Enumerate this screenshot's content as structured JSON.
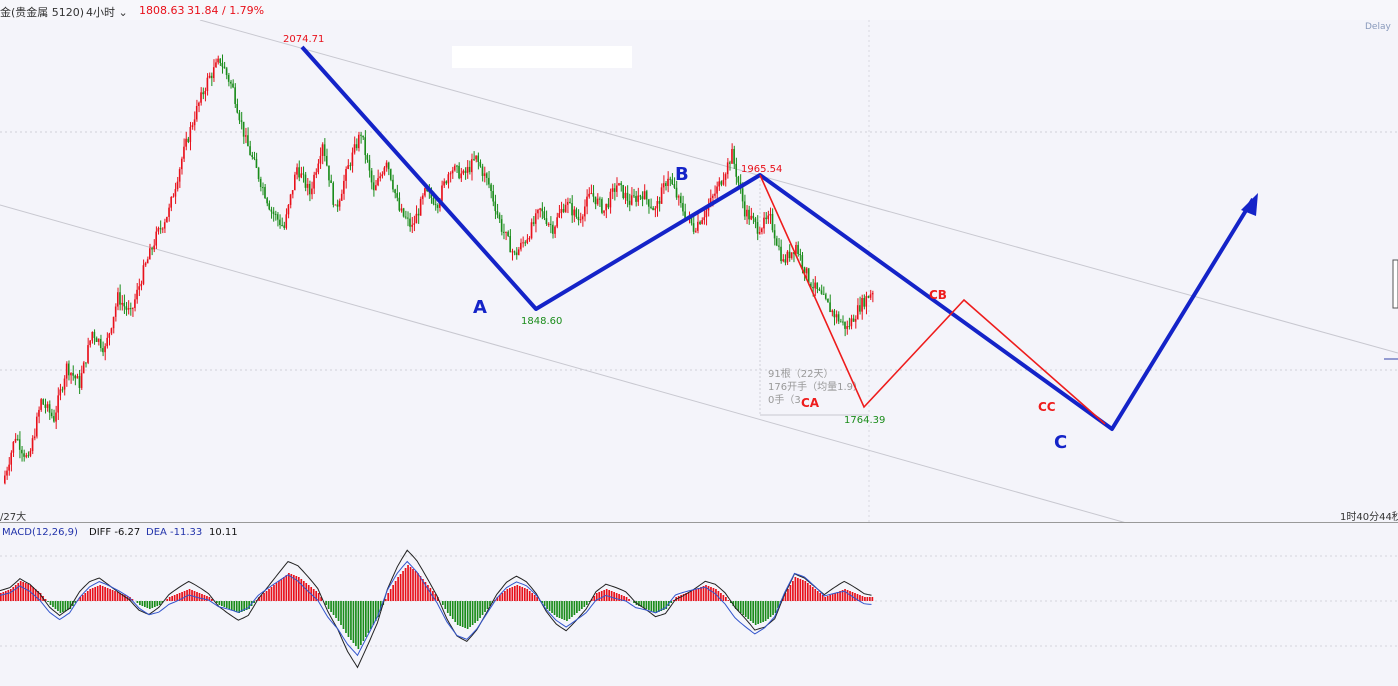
{
  "header": {
    "instrument": "金(贵金属 5120)",
    "period": "4小时",
    "price": "1808.63",
    "change": "31.84 / 1.79%",
    "delay_tag": "Delay"
  },
  "footer": {
    "left_date": "/27大",
    "right_time": "1时40分44秒"
  },
  "macd": {
    "title": "MACD(12,26,9)",
    "diff": "DIFF -6.27",
    "dea": "DEA -11.33",
    "macd_value": "10.11"
  },
  "colors": {
    "up": "#e8101a",
    "down": "#1a8c1a",
    "wave_blue": "#1423c8",
    "wave_red": "#ee1c1c",
    "background": "#f4f4fa"
  },
  "chart_data": [
    {
      "type": "candlestick",
      "title": "",
      "price_labels": [
        {
          "label": "2074.71",
          "value": 2074.71,
          "kind": "high"
        },
        {
          "label": "1848.60",
          "value": 1848.6,
          "kind": "low"
        },
        {
          "label": "1965.54",
          "value": 1965.54,
          "kind": "high"
        },
        {
          "label": "1764.39",
          "value": 1764.39,
          "kind": "low"
        }
      ],
      "ohlc_path_closes": [
        1585,
        1640,
        1610,
        1680,
        1660,
        1720,
        1700,
        1760,
        1740,
        1800,
        1780,
        1830,
        1870,
        1900,
        1960,
        2010,
        2050,
        2074,
        2040,
        1980,
        1940,
        1900,
        1880,
        1950,
        1920,
        1980,
        1900,
        1950,
        1990,
        1920,
        1960,
        1900,
        1880,
        1920,
        1910,
        1950,
        1940,
        1960,
        1930,
        1880,
        1848,
        1870,
        1900,
        1880,
        1910,
        1890,
        1920,
        1900,
        1930,
        1910,
        1920,
        1900,
        1940,
        1905,
        1880,
        1900,
        1930,
        1965,
        1900,
        1880,
        1890,
        1840,
        1860,
        1820,
        1800,
        1780,
        1764,
        1790,
        1808
      ],
      "wave_labels": [
        "A",
        "B",
        "C",
        "CA",
        "CB",
        "CC"
      ],
      "overlay_text": [
        "91根（22天）",
        "176开手（均量1.9）",
        "0手（3"
      ]
    },
    {
      "type": "bar",
      "title": "MACD(12,26,9)",
      "series": [
        {
          "name": "DIFF",
          "value": -6.27
        },
        {
          "name": "DEA",
          "value": -11.33
        },
        {
          "name": "MACD",
          "value": 10.11
        }
      ],
      "histogram": [
        2,
        3,
        5,
        4,
        2,
        -1,
        -3,
        -2,
        1,
        3,
        4,
        3,
        2,
        1,
        -1,
        -2,
        -1,
        1,
        2,
        3,
        2,
        1,
        -1,
        -2,
        -3,
        -2,
        1,
        3,
        5,
        7,
        6,
        4,
        2,
        -2,
        -5,
        -9,
        -12,
        -8,
        -4,
        2,
        6,
        9,
        7,
        4,
        1,
        -3,
        -6,
        -7,
        -5,
        -2,
        1,
        3,
        4,
        3,
        1,
        -2,
        -4,
        -5,
        -3,
        -1,
        2,
        3,
        2,
        1,
        -1,
        -2,
        -3,
        -2,
        1,
        2,
        3,
        4,
        3,
        1,
        -2,
        -4,
        -6,
        -5,
        -3,
        2,
        6,
        5,
        3,
        1,
        2,
        3,
        2,
        1
      ]
    }
  ]
}
